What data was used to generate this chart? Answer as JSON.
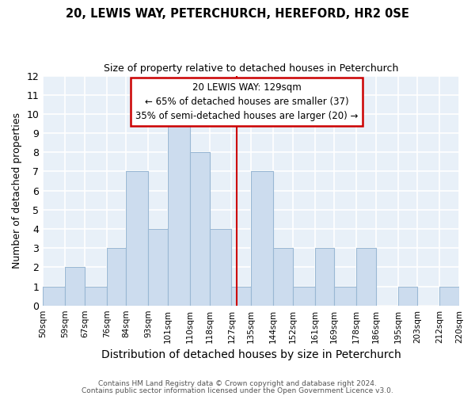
{
  "title": "20, LEWIS WAY, PETERCHURCH, HEREFORD, HR2 0SE",
  "subtitle": "Size of property relative to detached houses in Peterchurch",
  "xlabel": "Distribution of detached houses by size in Peterchurch",
  "ylabel": "Number of detached properties",
  "bin_edges": [
    50,
    59,
    67,
    76,
    84,
    93,
    101,
    110,
    118,
    127,
    135,
    144,
    152,
    161,
    169,
    178,
    186,
    195,
    203,
    212,
    220
  ],
  "bar_heights": [
    1,
    2,
    1,
    3,
    7,
    4,
    10,
    8,
    4,
    1,
    7,
    3,
    1,
    3,
    1,
    3,
    0,
    1,
    0,
    1
  ],
  "bar_color": "#ccdcee",
  "bar_edge_color": "#9ab8d4",
  "red_line_x": 129,
  "ylim": [
    0,
    12
  ],
  "yticks": [
    0,
    1,
    2,
    3,
    4,
    5,
    6,
    7,
    8,
    9,
    10,
    11,
    12
  ],
  "annotation_title": "20 LEWIS WAY: 129sqm",
  "annotation_line1": "← 65% of detached houses are smaller (37)",
  "annotation_line2": "35% of semi-detached houses are larger (20) →",
  "annotation_box_color": "#ffffff",
  "annotation_box_edge_color": "#cc0000",
  "background_color": "#e8f0f8",
  "grid_color": "#ffffff",
  "footnote1": "Contains HM Land Registry data © Crown copyright and database right 2024.",
  "footnote2": "Contains public sector information licensed under the Open Government Licence v3.0."
}
